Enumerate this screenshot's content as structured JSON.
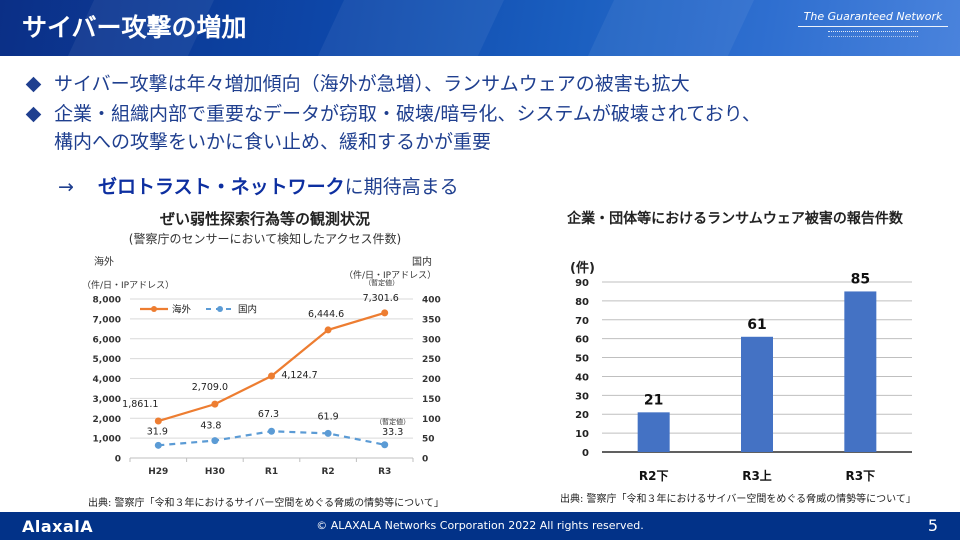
{
  "header": {
    "title": "サイバー攻撃の増加",
    "brand_name": "The Guaranteed Network"
  },
  "bullets": [
    "サイバー攻撃は年々増加傾向（海外が急増）、ランサムウェアの被害も拡大",
    "企業・組織内部で重要なデータが窃取・破壊/暗号化、システムが破壊されており、",
    "構内への攻撃をいかに食い止め、緩和するかが重要"
  ],
  "conclusion": {
    "arrow": "→",
    "highlight": "ゼロトラスト・ネットワーク",
    "rest": "に期待高まる"
  },
  "colors": {
    "brand_blue": "#1f3f8f",
    "footer_blue": "#023288",
    "overseas_line": "#ed7d31",
    "domestic_line": "#5b9bd5",
    "bar": "#4472c4"
  },
  "chart_data": [
    {
      "type": "line",
      "title": "ぜい弱性探索行為等の観測状況",
      "subtitle": "(警察庁のセンサーにおいて検知したアクセス件数)",
      "left_axis_label": "海外",
      "right_axis_label": "国内",
      "left_unit": "（件/日・IPアドレス）",
      "right_unit": "（件/日・IPアドレス）",
      "categories": [
        "H29",
        "H30",
        "R1",
        "R2",
        "R3"
      ],
      "ylim_left": [
        0,
        8000
      ],
      "ylim_right": [
        0,
        400
      ],
      "left_ticks": [
        "0",
        "1,000",
        "2,000",
        "3,000",
        "4,000",
        "5,000",
        "6,000",
        "7,000",
        "8,000"
      ],
      "right_ticks": [
        "0",
        "50",
        "100",
        "150",
        "200",
        "250",
        "300",
        "350",
        "400"
      ],
      "series": [
        {
          "name": "海外",
          "axis": "left",
          "style": "solid",
          "values": [
            1861.1,
            2709.0,
            4124.7,
            6444.6,
            7301.6
          ],
          "labels": [
            "1,861.1",
            "2,709.0",
            "4,124.7",
            "6,444.6",
            "7,301.6"
          ]
        },
        {
          "name": "国内",
          "axis": "right",
          "style": "dashed",
          "values": [
            31.9,
            43.8,
            67.3,
            61.9,
            33.3
          ],
          "labels": [
            "31.9",
            "43.8",
            "67.3",
            "61.9",
            "33.3"
          ]
        }
      ],
      "annotations": [
        "（暫定値）",
        "（暫定値）"
      ],
      "legend": "top-left",
      "grid": true,
      "source": "出典: 警察庁「令和３年におけるサイバー空間をめぐる脅威の情勢等について」"
    },
    {
      "type": "bar",
      "title": "企業・団体等におけるランサムウェア被害の報告件数",
      "ylabel": "(件)",
      "categories": [
        "R2下",
        "R3上",
        "R3下"
      ],
      "values": [
        21,
        61,
        85
      ],
      "labels": [
        "21",
        "61",
        "85"
      ],
      "ylim": [
        0,
        90
      ],
      "ticks": [
        "0",
        "10",
        "20",
        "30",
        "40",
        "50",
        "60",
        "70",
        "80",
        "90"
      ],
      "grid": true,
      "source": "出典: 警察庁「令和３年におけるサイバー空間をめぐる脅威の情勢等について」"
    }
  ],
  "footer": {
    "logo": "AlaxalA",
    "copyright": "© ALAXALA Networks Corporation 2022 All rights reserved.",
    "page_number": "5"
  }
}
